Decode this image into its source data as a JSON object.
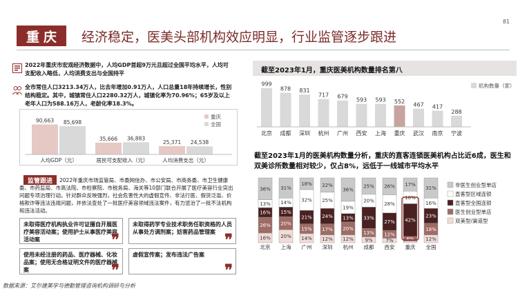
{
  "header": {
    "city": "重庆",
    "headline": "经济稳定，医美头部机构效应明显，行业监管逐步跟进",
    "page_number": "81"
  },
  "macro": {
    "line1": "2022年重庆市宏观经济数据中，人均GDP首超9万元且超过全国平均水平，人均可支配收入略低，人均消费支出与全国持平",
    "line2": "全市常住人口3213.34万人，比去年增加0.91万人，人口总量18年持续增长，性别结构稳定。其中，城镇常住人口2280.32万人，城镇化率为70.96%；65岁及以上老年人口为588.16万人，老龄化率18.3%。"
  },
  "colors": {
    "accent": "#8b2e2b",
    "bar_city": "#e6c9c4",
    "bar_national": "#d9d9d9",
    "highlight": "#c7a49d",
    "seg_noncomm": "#c9c9c9",
    "seg_direct_local": "#ffffff",
    "seg_direct_national": "#4a2020",
    "seg_clinic": "#9e6b65",
    "seg_dual": "#f2dcd8"
  },
  "econ_chart": {
    "legend": [
      "重庆",
      "全国"
    ],
    "categories": [
      "人均GDP（元）",
      "居民可支配收入（元）",
      "人均消费支出（元）"
    ],
    "chongqing": [
      90663,
      35666,
      25371
    ],
    "national": [
      85698,
      36883,
      24538
    ],
    "chongqing_labels": [
      "90,663",
      "35,666",
      "25,371"
    ],
    "national_labels": [
      "85,698",
      "36,883",
      "24,538"
    ],
    "ymax": 100000
  },
  "regulation": {
    "badge": "监管跟进",
    "text": "2022年重庆市场监管局、市委网信办、市公安局、市商务委、市卫生健康委、市药监局、市高法院、市检察院、市税务局、海关等10部门联合开展了医疗美容行业突出问题专项治理行动。针对群众反映强烈，社会危害性大的虚假宣传、非法行医、假货泛滥、价格欺诈等违法违规问题，并依法查处了一批医疗美容领域违法案件，有力惩治了一批不法机构和违法活动。",
    "cases": [
      "未取得医疗机构执业许可证擅自开展医疗美容活动案；使用护士从事医疗美容活动案",
      "未取得药学专业技术职务任职资格的人员从事处方调剂案；妨害药品管理案",
      "使用未经注册的药品、医疗器械、化妆品案；使用无合格证明文件的医疗器械案",
      "虚假宣传案；发布违法广告案"
    ]
  },
  "source": "数据来源：艾尔建美学与德勤管理咨询机构调研与分析",
  "count_chart": {
    "title": "截至2023年1月，重庆医美机构数量排名第八",
    "legend": "机构数量（家）",
    "categories": [
      "北京",
      "成都",
      "深圳",
      "杭州",
      "广州",
      "西安",
      "上海",
      "重庆",
      "武汉",
      "南京",
      "宁波"
    ],
    "values": [
      999,
      878,
      831,
      717,
      679,
      593,
      593,
      552,
      467,
      417,
      288
    ],
    "value_labels": [
      "999",
      "878",
      "831",
      "717",
      "679",
      "593",
      "593",
      "552",
      "467",
      "417",
      "288"
    ],
    "highlight_index": 7,
    "ymax": 1100
  },
  "mix_chart": {
    "title": "截至2023年1月的医美机构数量分析，重庆的直客连锁医美机构占比近6成，医生和双美诊所数量相对较少，仅占8%，远低于一线城市平均水平",
    "categories": [
      "北京",
      "上海",
      "广州",
      "深圳",
      "杭州",
      "成都",
      "西安",
      "重庆",
      "全国"
    ],
    "legend": [
      "非医生创业型单店",
      "直客型区域连锁",
      "直客型全国连锁",
      "医生创业型单店",
      "双美型/渠道型"
    ],
    "series_order_bottom_to_top": [
      "双美型/渠道型",
      "医生创业型单店",
      "直客型全国连锁",
      "直客型区域连锁",
      "非医生创业型单店"
    ],
    "segments": [
      {
        "values": [
          16,
          26,
          16,
          13,
          36
        ],
        "labels": [
          "16%",
          "26%",
          "16%",
          "13%",
          "36%"
        ]
      },
      {
        "values": [
          20,
          20,
          15,
          14,
          31
        ],
        "labels": [
          "20%",
          "20%",
          "15%",
          "14%",
          "31%"
        ]
      },
      {
        "values": [
          14,
          15,
          21,
          32,
          18
        ],
        "labels": [
          "14%",
          "15%",
          "21%",
          "32%",
          "18%"
        ]
      },
      {
        "values": [
          12,
          17,
          24,
          25,
          22
        ],
        "labels": [
          "12%",
          "17%",
          "24%",
          "25%",
          "22%"
        ]
      },
      {
        "values": [
          12,
          20,
          13,
          19,
          36
        ],
        "labels": [
          "12%",
          "20%",
          "13%",
          "19%",
          "36%"
        ]
      },
      {
        "values": [
          9,
          13,
          33,
          20,
          25
        ],
        "labels": [
          "9%",
          "13%",
          "33%",
          "20%",
          "25%"
        ]
      },
      {
        "values": [
          7,
          12,
          27,
          28,
          26
        ],
        "labels": [
          "7%",
          "12%",
          "27%",
          "28%",
          "26%"
        ]
      },
      {
        "values": [
          2,
          6,
          42,
          16,
          17
        ],
        "labels": [
          "2%",
          "6%",
          "42%",
          "16%",
          "17%"
        ]
      },
      {
        "values": [
          12,
          18,
          23,
          16,
          31
        ],
        "labels": [
          "12%",
          "18%",
          "23%",
          "16%",
          "31%"
        ]
      }
    ],
    "highlight_index": 7
  }
}
